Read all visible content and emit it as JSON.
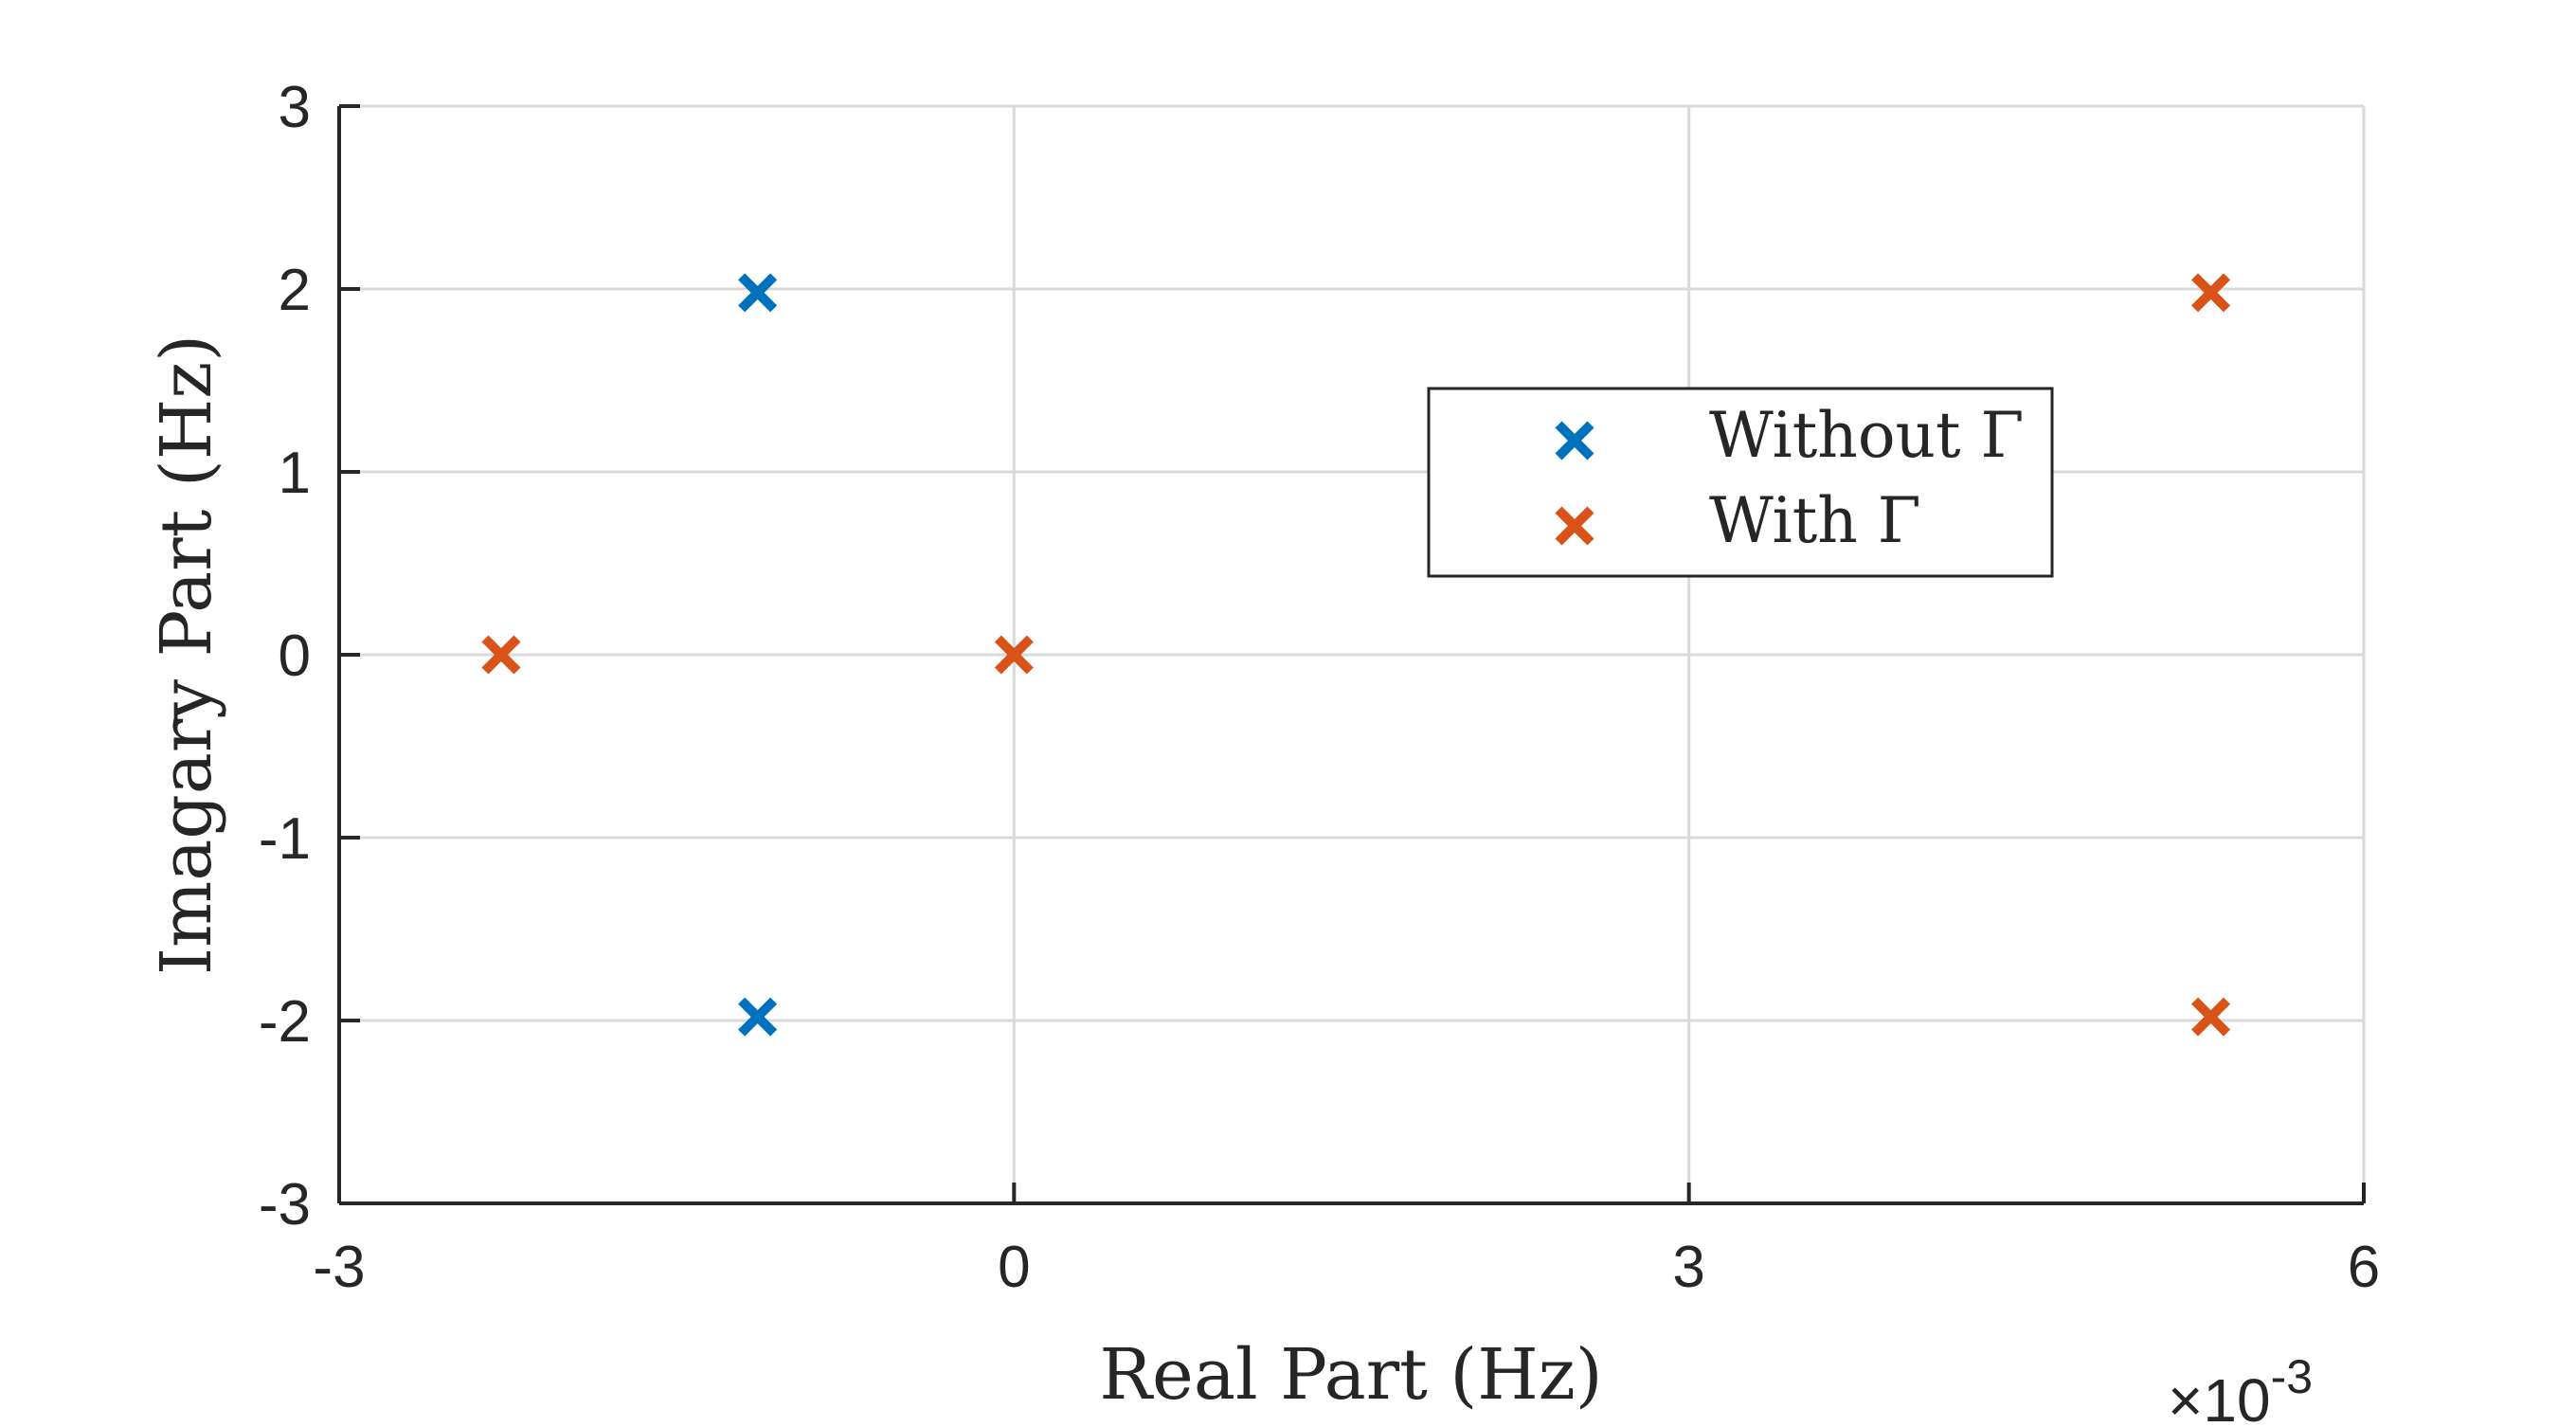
{
  "chart_data": {
    "type": "scatter",
    "title": "",
    "xlabel": "Real Part (Hz)",
    "ylabel": "Imagary Part (Hz)",
    "x_multiplier_label": "×10",
    "x_multiplier_exp": "-3",
    "xlim": [
      -0.003,
      0.006
    ],
    "ylim": [
      -3,
      3
    ],
    "xticks": [
      -0.003,
      0,
      0.003,
      0.006
    ],
    "xtick_labels": [
      "-3",
      "0",
      "3",
      "6"
    ],
    "yticks": [
      -3,
      -2,
      -1,
      0,
      1,
      2,
      3
    ],
    "ytick_labels": [
      "-3",
      "-2",
      "-1",
      "0",
      "1",
      "2",
      "3"
    ],
    "grid": true,
    "legend_position": "center-right",
    "marker": "x",
    "series": [
      {
        "name": "Without Γ",
        "color": "#0072BD",
        "points": [
          {
            "x": -0.00114,
            "y": 1.98
          },
          {
            "x": -0.00114,
            "y": -1.98
          }
        ]
      },
      {
        "name": "With Γ",
        "color": "#D95319",
        "points": [
          {
            "x": -0.00228,
            "y": 0.0
          },
          {
            "x": 0.0,
            "y": 0.0
          },
          {
            "x": 0.00532,
            "y": 1.98
          },
          {
            "x": 0.00532,
            "y": -1.98
          }
        ]
      }
    ]
  }
}
